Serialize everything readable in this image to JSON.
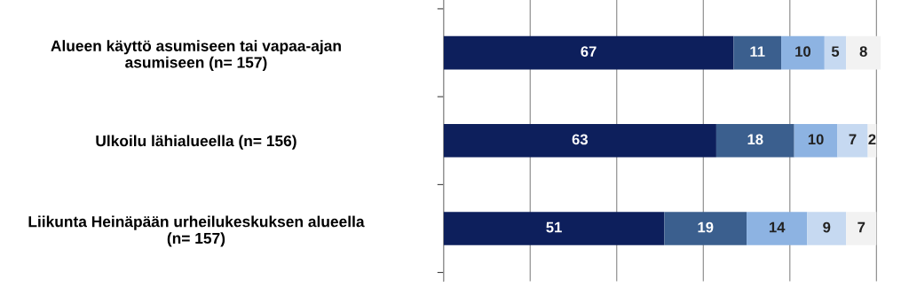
{
  "chart_data": {
    "type": "bar",
    "orientation": "horizontal",
    "stacked": true,
    "data_labels": true,
    "grid": "x",
    "legend": false,
    "tick_labels": "y",
    "categories": [
      "Alueen käyttö asumiseen tai vapaa-ajan\nasumiseen (n= 157)",
      "Ulkoilu lähialueella (n= 156)",
      "Liikunta Heinäpään urheilukeskuksen alueella\n(n= 157)"
    ],
    "xticks": [
      {
        "value": 0,
        "label": null
      },
      {
        "value": 20,
        "label": null
      },
      {
        "value": 40,
        "label": null
      },
      {
        "value": 60,
        "label": null
      },
      {
        "value": 80,
        "label": null
      },
      {
        "value": 100,
        "label": null
      }
    ],
    "series": [
      {
        "color": "#0d1f5c",
        "values": [
          67,
          63,
          51
        ]
      },
      {
        "color": "#3b5f8e",
        "values": [
          11,
          18,
          19
        ]
      },
      {
        "color": "#8db3e2",
        "values": [
          10,
          10,
          14
        ]
      },
      {
        "color": "#c6d9f1",
        "values": [
          5,
          7,
          9
        ]
      },
      {
        "color": "#f2f2f2",
        "values": [
          8,
          2,
          7
        ]
      }
    ]
  }
}
